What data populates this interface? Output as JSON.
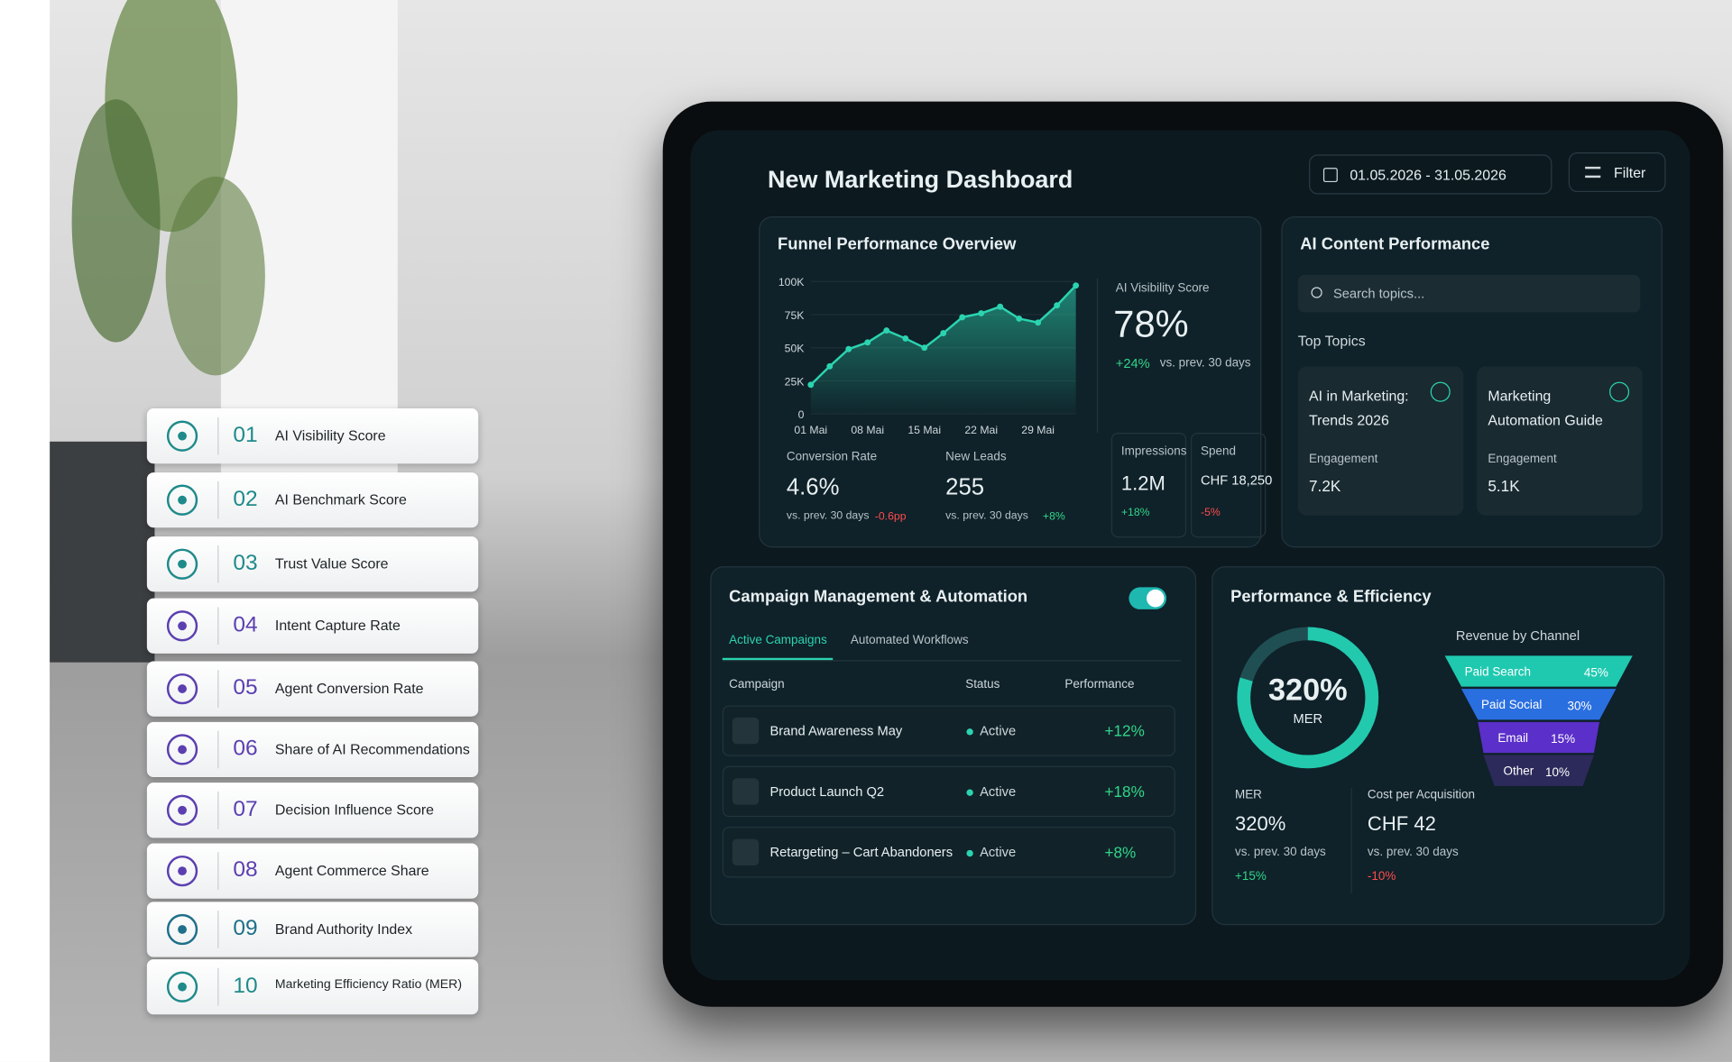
{
  "list": [
    {
      "number": "01",
      "label": "AI Visibility Score"
    },
    {
      "number": "02",
      "label": "AI Benchmark Score"
    },
    {
      "number": "03",
      "label": "Trust Value Score"
    },
    {
      "number": "04",
      "label": "Intent Capture Rate"
    },
    {
      "number": "05",
      "label": "Agent Conversion Rate"
    },
    {
      "number": "06",
      "label": "Share of AI Recommendations"
    },
    {
      "number": "07",
      "label": "Decision Influence Score"
    },
    {
      "number": "08",
      "label": "Agent Commerce Share"
    },
    {
      "number": "09",
      "label": "Brand Authority Index"
    },
    {
      "number": "10",
      "label": "Marketing Efficiency Ratio (MER)"
    }
  ],
  "dashboard": {
    "title": "New Marketing Dashboard",
    "date_range": "01.05.2026 - 31.05.2026",
    "filter": "Filter",
    "funnel_overview": {
      "title": "Funnel Performance Overview",
      "visibility": {
        "label": "AI Visibility Score",
        "value": "78%",
        "change": "+24%",
        "comparison": "vs. prev. 30 days"
      },
      "kpis": [
        {
          "label": "Conversion Rate",
          "value": "4.6%",
          "comparison": "vs. prev. 30 days",
          "change": "-0.6pp"
        },
        {
          "label": "New Leads",
          "value": "255",
          "comparison": "vs. prev. 30 days",
          "change": "+8%"
        },
        {
          "label": "Impressions",
          "value": "1.2M",
          "change": "+18%"
        },
        {
          "label": "Spend",
          "value": "CHF 18,250",
          "change": "-5%"
        }
      ]
    },
    "ai_content": {
      "title": "AI Content Performance",
      "search": "Search topics...",
      "top_topics": "Top Topics",
      "topics": [
        {
          "title": "AI in Marketing: Trends 2026",
          "metric": "Engagement",
          "value": "7.2K"
        },
        {
          "title": "Marketing Automation Guide",
          "metric": "Engagement",
          "value": "5.1K"
        }
      ]
    },
    "campaigns": {
      "title": "Campaign Management & Automation",
      "tabs": [
        "Active Campaigns",
        "Automated Workflows"
      ],
      "columns": [
        "Campaign",
        "Status",
        "Performance"
      ],
      "rows": [
        [
          "Brand Awareness May",
          "Active",
          "+12%"
        ],
        [
          "Product Launch Q2",
          "Active",
          "+18%"
        ],
        [
          "Retargeting – Cart Abandoners",
          "Active",
          "+8%"
        ]
      ]
    },
    "performance": {
      "title": "Performance & Efficiency",
      "donut_value": "320%",
      "donut_label": "MER",
      "mer": {
        "label": "MER",
        "value": "320%",
        "comparison": "vs. prev. 30 days",
        "change": "+15%"
      },
      "cpa": {
        "label": "Cost per Acquisition",
        "value": "CHF 42",
        "comparison": "vs. prev. 30 days",
        "change": "-10%"
      }
    }
  },
  "chart_data": [
    {
      "type": "line",
      "categories": [
        "01 Mai",
        null,
        null,
        "08 Mai",
        null,
        null,
        "15 Mai",
        null,
        null,
        "22 Mai",
        null,
        null,
        "29 Mai",
        null,
        null
      ],
      "values": [
        22000,
        36000,
        49000,
        54000,
        63000,
        57000,
        50000,
        61000,
        73000,
        76000,
        81000,
        72000,
        69000,
        82000,
        97000
      ],
      "color": "#2bd4b0",
      "ylim": [
        0,
        100000
      ],
      "yticks": [
        0,
        {
          "value": 25000,
          "label": "25K"
        },
        {
          "value": 50000,
          "label": "50K"
        },
        {
          "value": 75000,
          "label": "75K"
        },
        {
          "value": 100000,
          "label": "100K"
        }
      ]
    },
    {
      "type": "funnel",
      "title": "Revenue by Channel",
      "categories": [
        "Paid Search",
        "Paid Social",
        "Email",
        "Other"
      ],
      "values": [
        45,
        30,
        15,
        10
      ],
      "value_labels": [
        "45%",
        "30%",
        "15%",
        "10%"
      ],
      "colors": [
        "#1fc9b0",
        "#2a6fe0",
        "#5b2fc9",
        "#2c2a5a"
      ]
    }
  ]
}
